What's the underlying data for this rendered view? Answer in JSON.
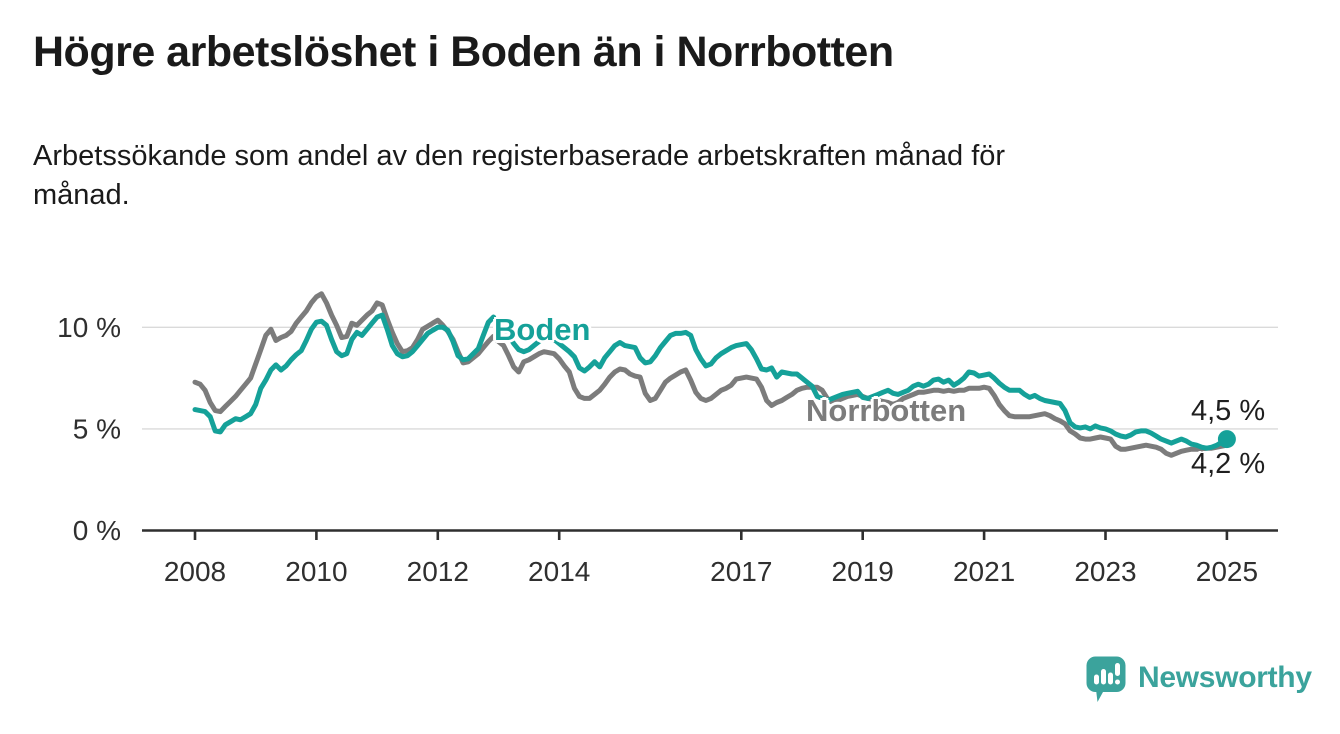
{
  "header": {
    "title": "Högre arbetslöshet i Boden än i Norrbotten",
    "subtitle_lines": [
      "Arbetssökande som andel av den registerbaserade arbetskraften månad för",
      "månad."
    ]
  },
  "colors": {
    "boden": "#15a199",
    "norrbotten": "#7c7c7c",
    "axis": "#2f2f2f",
    "grid": "#dadada",
    "text": "#1a1a1a",
    "value_label": "#1f1f1f",
    "logo": "#3ba39c"
  },
  "chart_data": {
    "type": "line",
    "title": "Högre arbetslöshet i Boden än i Norrbotten",
    "subtitle": "Arbetssökande som andel av den registerbaserade arbetskraften månad för månad.",
    "x_unit": "month",
    "x_start": "2008-01",
    "x_end": "2025-01",
    "x_ticks": [
      2008,
      2010,
      2012,
      2014,
      2017,
      2019,
      2021,
      2023,
      2025
    ],
    "y_ticks": [
      {
        "value": 0,
        "label": "0 %"
      },
      {
        "value": 5,
        "label": "5 %"
      },
      {
        "value": 10,
        "label": "10 %"
      }
    ],
    "ylim": [
      0,
      12.2
    ],
    "grid": "horizontal",
    "legend": "inline-labels",
    "series": [
      {
        "name": "Boden",
        "color": "#15a199",
        "end_label": "4,5 %",
        "end_value": 4.5,
        "values": [
          5.95,
          5.9,
          5.85,
          5.6,
          4.9,
          4.85,
          5.2,
          5.35,
          5.5,
          5.45,
          5.6,
          5.75,
          6.2,
          7.0,
          7.4,
          7.9,
          8.15,
          7.9,
          8.1,
          8.4,
          8.65,
          8.85,
          9.35,
          9.9,
          10.25,
          10.3,
          10.1,
          9.4,
          8.8,
          8.6,
          8.7,
          9.4,
          9.75,
          9.6,
          9.9,
          10.2,
          10.5,
          10.6,
          9.9,
          9.1,
          8.7,
          8.55,
          8.6,
          8.8,
          9.1,
          9.4,
          9.7,
          9.85,
          10.0,
          10.0,
          9.85,
          9.3,
          8.6,
          8.4,
          8.45,
          8.7,
          8.95,
          9.6,
          10.25,
          10.5,
          10.3,
          10.0,
          9.6,
          9.2,
          8.9,
          8.8,
          8.9,
          9.1,
          9.3,
          9.45,
          9.5,
          9.4,
          9.2,
          9.0,
          8.8,
          8.55,
          8.0,
          7.85,
          8.05,
          8.3,
          8.05,
          8.5,
          8.8,
          9.1,
          9.25,
          9.1,
          9.05,
          9.0,
          8.5,
          8.25,
          8.3,
          8.6,
          9.0,
          9.3,
          9.6,
          9.7,
          9.7,
          9.75,
          9.6,
          8.9,
          8.45,
          8.1,
          8.2,
          8.5,
          8.7,
          8.85,
          9.0,
          9.1,
          9.15,
          9.2,
          8.9,
          8.45,
          7.95,
          7.9,
          8.0,
          7.55,
          7.8,
          7.75,
          7.7,
          7.7,
          7.5,
          7.3,
          7.1,
          6.6,
          6.5,
          6.4,
          6.5,
          6.6,
          6.7,
          6.75,
          6.8,
          6.85,
          6.55,
          6.5,
          6.6,
          6.7,
          6.8,
          6.9,
          6.75,
          6.7,
          6.8,
          6.9,
          7.1,
          7.2,
          7.1,
          7.2,
          7.4,
          7.45,
          7.3,
          7.4,
          7.15,
          7.3,
          7.5,
          7.8,
          7.75,
          7.6,
          7.65,
          7.7,
          7.5,
          7.25,
          7.05,
          6.9,
          6.9,
          6.9,
          6.7,
          6.55,
          6.65,
          6.5,
          6.4,
          6.35,
          6.3,
          6.25,
          5.9,
          5.3,
          5.1,
          5.05,
          5.1,
          5.0,
          5.15,
          5.05,
          5.0,
          4.9,
          4.75,
          4.65,
          4.6,
          4.7,
          4.85,
          4.9,
          4.9,
          4.8,
          4.65,
          4.5,
          4.4,
          4.3,
          4.4,
          4.5,
          4.4,
          4.25,
          4.2,
          4.1,
          4.05,
          4.1,
          4.2,
          4.35,
          4.5
        ]
      },
      {
        "name": "Norrbotten",
        "color": "#7c7c7c",
        "end_label": "4,2 %",
        "end_value": 4.2,
        "values": [
          7.3,
          7.2,
          6.9,
          6.3,
          5.9,
          5.85,
          6.1,
          6.35,
          6.6,
          6.9,
          7.2,
          7.5,
          8.2,
          8.9,
          9.6,
          9.9,
          9.35,
          9.5,
          9.6,
          9.8,
          10.2,
          10.5,
          10.8,
          11.2,
          11.5,
          11.65,
          11.2,
          10.6,
          10.1,
          9.5,
          9.55,
          10.2,
          10.1,
          10.35,
          10.6,
          10.8,
          11.2,
          11.1,
          10.4,
          9.75,
          9.2,
          8.8,
          8.85,
          9.0,
          9.4,
          9.9,
          10.05,
          10.2,
          10.35,
          10.1,
          9.8,
          9.4,
          8.8,
          8.25,
          8.3,
          8.5,
          8.7,
          9.0,
          9.3,
          9.55,
          9.3,
          9.1,
          8.6,
          8.05,
          7.8,
          8.3,
          8.4,
          8.55,
          8.7,
          8.8,
          8.75,
          8.7,
          8.45,
          8.1,
          7.8,
          7.0,
          6.6,
          6.5,
          6.5,
          6.7,
          6.9,
          7.2,
          7.55,
          7.8,
          7.95,
          7.9,
          7.7,
          7.6,
          7.55,
          6.75,
          6.4,
          6.5,
          6.9,
          7.3,
          7.5,
          7.65,
          7.8,
          7.9,
          7.4,
          6.8,
          6.5,
          6.4,
          6.5,
          6.7,
          6.9,
          7.0,
          7.15,
          7.45,
          7.5,
          7.55,
          7.5,
          7.45,
          7.05,
          6.4,
          6.15,
          6.3,
          6.4,
          6.55,
          6.7,
          6.9,
          7.0,
          7.05,
          7.05,
          7.05,
          6.9,
          6.5,
          6.3,
          6.4,
          6.5,
          6.6,
          6.65,
          6.7,
          6.6,
          6.5,
          6.45,
          6.4,
          6.35,
          6.3,
          6.2,
          6.3,
          6.5,
          6.6,
          6.7,
          6.8,
          6.8,
          6.85,
          6.9,
          6.9,
          6.85,
          6.9,
          6.85,
          6.9,
          6.9,
          7.0,
          7.0,
          7.0,
          7.05,
          7.0,
          6.65,
          6.2,
          5.9,
          5.65,
          5.6,
          5.6,
          5.6,
          5.6,
          5.65,
          5.7,
          5.75,
          5.65,
          5.5,
          5.4,
          5.25,
          4.9,
          4.75,
          4.55,
          4.5,
          4.5,
          4.55,
          4.6,
          4.55,
          4.5,
          4.15,
          4.0,
          4.0,
          4.05,
          4.1,
          4.15,
          4.2,
          4.15,
          4.1,
          4.0,
          3.8,
          3.7,
          3.8,
          3.9,
          3.95,
          4.0,
          4.0,
          4.0,
          4.05,
          4.05,
          4.1,
          4.15,
          4.2
        ]
      }
    ]
  },
  "footer": {
    "brand": "Newsworthy"
  }
}
